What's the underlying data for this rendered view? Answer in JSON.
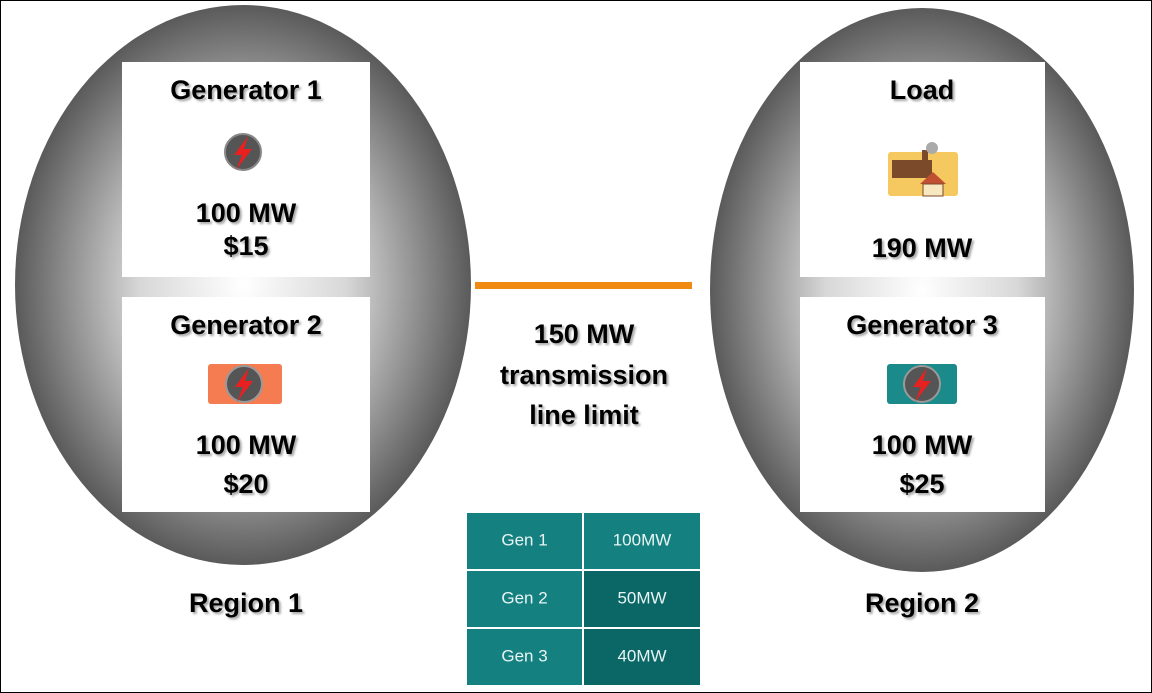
{
  "regions": [
    {
      "label": "Region 1",
      "units": [
        {
          "name": "Generator 1",
          "capacity": "100 MW",
          "price": "$15"
        },
        {
          "name": "Generator 2",
          "capacity": "100 MW",
          "price": "$20"
        }
      ]
    },
    {
      "label": "Region 2",
      "units": [
        {
          "name": "Load",
          "capacity": "190 MW"
        },
        {
          "name": "Generator 3",
          "capacity": "100 MW",
          "price": "$25"
        }
      ]
    }
  ],
  "line": {
    "text": [
      "150 MW",
      "transmission",
      "line limit"
    ]
  },
  "table": {
    "rows": [
      [
        "Gen 1",
        "100MW"
      ],
      [
        "Gen 2",
        "50MW"
      ],
      [
        "Gen 3",
        "40MW"
      ]
    ]
  }
}
